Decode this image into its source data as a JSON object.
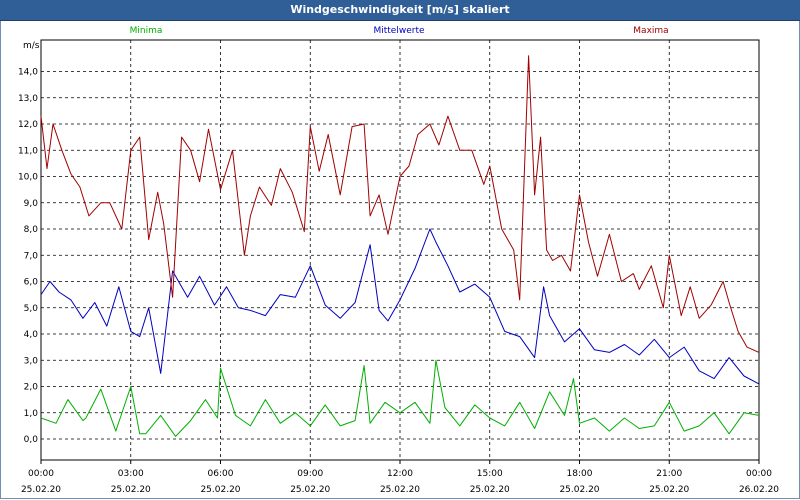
{
  "window": {
    "title": "Windgeschwindigkeit [m/s] skaliert"
  },
  "chart_data": {
    "type": "line",
    "title": "Windgeschwindigkeit [m/s] skaliert",
    "ylabel": "m/s",
    "xlabel": "",
    "ylim": [
      -0.8,
      15.2
    ],
    "yticks": [
      "0,0",
      "1,0",
      "2,0",
      "3,0",
      "4,0",
      "5,0",
      "6,0",
      "7,0",
      "8,0",
      "9,0",
      "10,0",
      "11,0",
      "12,0",
      "13,0",
      "14,0"
    ],
    "xlim": [
      0,
      24
    ],
    "xticks": [
      {
        "t": "00:00",
        "d": "25.02.20"
      },
      {
        "t": "03:00",
        "d": "25.02.20"
      },
      {
        "t": "06:00",
        "d": "25.02.20"
      },
      {
        "t": "09:00",
        "d": "25.02.20"
      },
      {
        "t": "12:00",
        "d": "25.02.20"
      },
      {
        "t": "15:00",
        "d": "25.02.20"
      },
      {
        "t": "18:00",
        "d": "25.02.20"
      },
      {
        "t": "21:00",
        "d": "25.02.20"
      },
      {
        "t": "00:00",
        "d": "26.02.20"
      }
    ],
    "grid": true,
    "legend_position": "top",
    "series": [
      {
        "name": "Minima",
        "color": "#00b000",
        "x": [
          0,
          0.5,
          0.9,
          1.4,
          1.5,
          2.0,
          2.5,
          3.0,
          3.3,
          3.5,
          4.0,
          4.5,
          5.0,
          5.5,
          5.9,
          6.0,
          6.5,
          7.0,
          7.5,
          8.0,
          8.5,
          9.0,
          9.5,
          10.0,
          10.5,
          10.8,
          11.0,
          11.5,
          12.0,
          12.5,
          13.0,
          13.2,
          13.5,
          14.0,
          14.5,
          15.0,
          15.5,
          16.0,
          16.5,
          17.0,
          17.5,
          17.8,
          18.0,
          18.5,
          19.0,
          19.5,
          20.0,
          20.5,
          21.0,
          21.5,
          22.0,
          22.5,
          23.0,
          23.5,
          24.0
        ],
        "values": [
          0.8,
          0.6,
          1.5,
          0.7,
          0.8,
          1.9,
          0.3,
          2.0,
          0.2,
          0.2,
          0.9,
          0.1,
          0.7,
          1.5,
          0.8,
          2.7,
          0.9,
          0.5,
          1.5,
          0.6,
          1.0,
          0.5,
          1.3,
          0.5,
          0.7,
          2.8,
          0.6,
          1.4,
          1.0,
          1.4,
          0.6,
          3.0,
          1.2,
          0.5,
          1.3,
          0.8,
          0.5,
          1.4,
          0.4,
          1.8,
          0.9,
          2.3,
          0.6,
          0.8,
          0.3,
          0.8,
          0.4,
          0.5,
          1.4,
          0.3,
          0.5,
          1.0,
          0.2,
          1.0,
          0.9
        ]
      },
      {
        "name": "Mittelwerte",
        "color": "#0000c0",
        "x": [
          0,
          0.3,
          0.6,
          1.0,
          1.4,
          1.8,
          2.2,
          2.6,
          3.0,
          3.3,
          3.6,
          4.0,
          4.4,
          4.9,
          5.3,
          5.8,
          6.2,
          6.6,
          7.0,
          7.5,
          8.0,
          8.5,
          9.0,
          9.5,
          10.0,
          10.5,
          11.0,
          11.3,
          11.6,
          12.0,
          12.5,
          13.0,
          13.2,
          13.6,
          14.0,
          14.5,
          15.0,
          15.5,
          16.0,
          16.5,
          16.8,
          17.0,
          17.5,
          18.0,
          18.5,
          19.0,
          19.5,
          20.0,
          20.5,
          21.0,
          21.5,
          22.0,
          22.5,
          23.0,
          23.5,
          24.0
        ],
        "values": [
          5.5,
          6.0,
          5.6,
          5.3,
          4.6,
          5.2,
          4.3,
          5.8,
          4.1,
          3.9,
          5.0,
          2.5,
          6.4,
          5.4,
          6.2,
          5.1,
          5.8,
          5.0,
          4.9,
          4.7,
          5.5,
          5.4,
          6.6,
          5.1,
          4.6,
          5.2,
          7.4,
          4.9,
          4.5,
          5.3,
          6.5,
          8.0,
          7.5,
          6.6,
          5.6,
          5.9,
          5.4,
          4.1,
          3.9,
          3.1,
          5.8,
          4.7,
          3.7,
          4.2,
          3.4,
          3.3,
          3.6,
          3.2,
          3.8,
          3.1,
          3.5,
          2.6,
          2.3,
          3.1,
          2.4,
          2.1
        ]
      },
      {
        "name": "Maxima",
        "color": "#a00000",
        "x": [
          0,
          0.2,
          0.4,
          0.7,
          1.0,
          1.3,
          1.6,
          2.0,
          2.3,
          2.7,
          3.0,
          3.3,
          3.6,
          3.9,
          4.1,
          4.4,
          4.7,
          5.0,
          5.3,
          5.6,
          6.0,
          6.4,
          6.8,
          7.0,
          7.3,
          7.7,
          8.0,
          8.4,
          8.8,
          9.0,
          9.3,
          9.6,
          10.0,
          10.4,
          10.8,
          11.0,
          11.3,
          11.6,
          12.0,
          12.3,
          12.6,
          13.0,
          13.3,
          13.6,
          14.0,
          14.4,
          14.8,
          15.0,
          15.4,
          15.8,
          16.0,
          16.3,
          16.5,
          16.7,
          16.9,
          17.1,
          17.4,
          17.7,
          18.0,
          18.3,
          18.6,
          19.0,
          19.4,
          19.8,
          20.0,
          20.4,
          20.8,
          21.0,
          21.4,
          21.7,
          22.0,
          22.4,
          22.8,
          23.0,
          23.3,
          23.6,
          24.0
        ],
        "values": [
          12.3,
          10.3,
          12.0,
          11.0,
          10.1,
          9.6,
          8.5,
          9.0,
          9.0,
          8.0,
          11.0,
          11.5,
          7.6,
          9.4,
          8.2,
          5.4,
          11.5,
          11.0,
          9.8,
          11.8,
          9.5,
          11.0,
          7.0,
          8.5,
          9.6,
          8.9,
          10.3,
          9.4,
          7.9,
          11.9,
          10.2,
          11.6,
          9.3,
          11.9,
          12.0,
          8.5,
          9.3,
          7.8,
          10.0,
          10.4,
          11.6,
          12.0,
          11.2,
          12.3,
          11.0,
          11.0,
          9.7,
          10.4,
          8.0,
          7.2,
          5.3,
          14.6,
          9.3,
          11.5,
          7.2,
          6.8,
          7.0,
          6.4,
          9.3,
          7.5,
          6.2,
          7.8,
          6.0,
          6.3,
          5.7,
          6.6,
          5.0,
          7.0,
          4.7,
          5.8,
          4.6,
          5.1,
          6.0,
          5.2,
          4.1,
          3.5,
          3.3
        ]
      }
    ]
  }
}
